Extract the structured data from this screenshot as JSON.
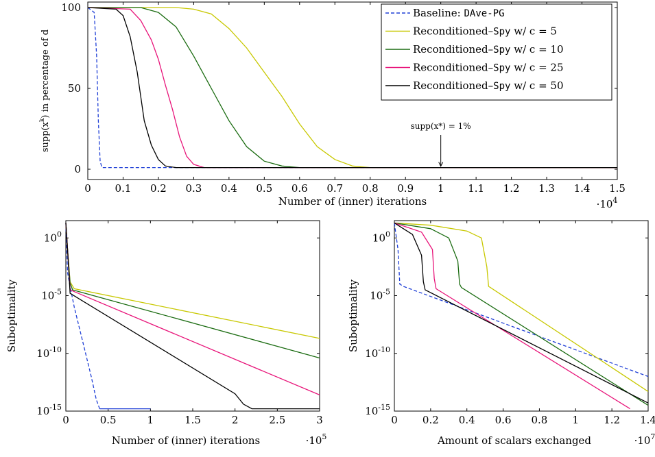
{
  "chart_data": [
    {
      "type": "line",
      "title": "",
      "xlabel": "Number of (inner) iterations",
      "ylabel": "supp(x^k) in percentage of d",
      "x_multiplier": "·10^4",
      "xlim": [
        0,
        1.5
      ],
      "ylim": [
        0,
        100
      ],
      "x_ticks": [
        "0",
        "0.1",
        "0.2",
        "0.3",
        "0.4",
        "0.5",
        "0.6",
        "0.7",
        "0.8",
        "0.9",
        "1",
        "1.1",
        "1.2",
        "1.3",
        "1.4",
        "1.5"
      ],
      "y_ticks": [
        "0",
        "50",
        "100"
      ],
      "legend_position": "top-right",
      "annotation": {
        "text": "supp(x*) = 1%",
        "x": 1.0,
        "y": 1
      },
      "series": [
        {
          "name": "Baseline: DAve-PG",
          "color": "#1f3fd6",
          "dash": true,
          "x": [
            0,
            0.018,
            0.025,
            0.03,
            0.035,
            0.04,
            1.5
          ],
          "y": [
            100,
            97,
            70,
            30,
            5,
            1,
            1
          ]
        },
        {
          "name": "Reconditioned–Spy w/ c = 5",
          "color": "#c8c800",
          "dash": false,
          "x": [
            0,
            0.25,
            0.3,
            0.35,
            0.4,
            0.45,
            0.5,
            0.55,
            0.6,
            0.65,
            0.7,
            0.75,
            0.8,
            1.5
          ],
          "y": [
            100,
            100,
            99,
            96,
            87,
            75,
            60,
            45,
            28,
            14,
            6,
            2,
            1,
            1
          ]
        },
        {
          "name": "Reconditioned–Spy w/ c = 10",
          "color": "#1a6b10",
          "dash": false,
          "x": [
            0,
            0.15,
            0.2,
            0.25,
            0.3,
            0.35,
            0.4,
            0.45,
            0.5,
            0.55,
            0.6,
            1.5
          ],
          "y": [
            100,
            100,
            97,
            88,
            70,
            50,
            30,
            14,
            5,
            2,
            1,
            1
          ]
        },
        {
          "name": "Reconditioned–Spy w/ c = 25",
          "color": "#e8157a",
          "dash": false,
          "x": [
            0,
            0.12,
            0.15,
            0.18,
            0.2,
            0.22,
            0.24,
            0.26,
            0.28,
            0.3,
            0.33,
            1.5
          ],
          "y": [
            100,
            99,
            92,
            80,
            68,
            52,
            37,
            20,
            8,
            3,
            1,
            1
          ]
        },
        {
          "name": "Reconditioned–Spy w/ c = 50",
          "color": "#000000",
          "dash": false,
          "x": [
            0,
            0.08,
            0.1,
            0.12,
            0.14,
            0.15,
            0.16,
            0.18,
            0.2,
            0.22,
            0.25,
            1.5
          ],
          "y": [
            100,
            99,
            95,
            82,
            60,
            45,
            30,
            15,
            6,
            2,
            1,
            1
          ]
        }
      ]
    },
    {
      "type": "line",
      "title": "",
      "xlabel": "Number of (inner) iterations",
      "ylabel": "Suboptimality",
      "x_multiplier": "·10^5",
      "xlim": [
        0,
        3
      ],
      "ylim_log10": [
        -15,
        1.5
      ],
      "yscale": "log",
      "x_ticks": [
        "0",
        "0.5",
        "1",
        "1.5",
        "2",
        "2.5",
        "3"
      ],
      "y_ticks": [
        "10^0",
        "10^-5",
        "10^-10",
        "10^-15"
      ],
      "series": [
        {
          "name": "Baseline: DAve-PG",
          "color": "#1f3fd6",
          "dash": true,
          "x": [
            0,
            0.02,
            0.05,
            0.1,
            0.2,
            0.3,
            0.36,
            0.4
          ],
          "log10_y": [
            1.3,
            -3,
            -4.2,
            -6,
            -9,
            -12,
            -14,
            -14.8
          ]
        },
        {
          "name": "Baseline: DAve-PG (tail)",
          "color": "#1f3fd6",
          "dash": false,
          "x": [
            0.4,
            0.45,
            1.0
          ],
          "log10_y": [
            -14.8,
            -14.8,
            -14.8
          ]
        },
        {
          "name": "Reconditioned–Spy w/ c = 5",
          "color": "#c8c800",
          "dash": false,
          "x": [
            0,
            0.02,
            0.05,
            0.1,
            3
          ],
          "log10_y": [
            1.3,
            -1,
            -3.8,
            -4.4,
            -8.7
          ]
        },
        {
          "name": "Reconditioned–Spy w/ c = 10",
          "color": "#1a6b10",
          "dash": false,
          "x": [
            0,
            0.02,
            0.05,
            0.08,
            3
          ],
          "log10_y": [
            1.3,
            -1,
            -3.9,
            -4.5,
            -10.4
          ]
        },
        {
          "name": "Reconditioned–Spy w/ c = 25",
          "color": "#e8157a",
          "dash": false,
          "x": [
            0,
            0.02,
            0.05,
            3
          ],
          "log10_y": [
            1.3,
            -1,
            -4.5,
            -13.6
          ]
        },
        {
          "name": "Reconditioned–Spy w/ c = 50",
          "color": "#000000",
          "dash": false,
          "x": [
            0,
            0.02,
            0.05,
            2.0,
            2.1,
            2.2,
            3
          ],
          "log10_y": [
            1.3,
            -1,
            -4.8,
            -13.5,
            -14.4,
            -14.8,
            -14.8
          ]
        }
      ]
    },
    {
      "type": "line",
      "title": "",
      "xlabel": "Amount of scalars exchanged",
      "ylabel": "Suboptimality",
      "x_multiplier": "·10^7",
      "xlim": [
        0,
        1.4
      ],
      "ylim_log10": [
        -15,
        1.5
      ],
      "yscale": "log",
      "x_ticks": [
        "0",
        "0.2",
        "0.4",
        "0.6",
        "0.8",
        "1",
        "1.2",
        "1.4"
      ],
      "y_ticks": [
        "10^0",
        "10^-5",
        "10^-10",
        "10^-15"
      ],
      "series": [
        {
          "name": "Baseline: DAve-PG",
          "color": "#1f3fd6",
          "dash": true,
          "x": [
            0,
            0.02,
            0.03,
            0.05,
            1.4
          ],
          "log10_y": [
            1.3,
            -1,
            -4,
            -4.2,
            -12
          ]
        },
        {
          "name": "Reconditioned–Spy w/ c = 5",
          "color": "#c8c800",
          "dash": false,
          "x": [
            0,
            0.2,
            0.4,
            0.48,
            0.51,
            0.52,
            0.53,
            1.4
          ],
          "log10_y": [
            1.3,
            1.1,
            0.6,
            0,
            -2.5,
            -4.2,
            -4.3,
            -13.3
          ]
        },
        {
          "name": "Reconditioned–Spy w/ c = 10",
          "color": "#1a6b10",
          "dash": false,
          "x": [
            0,
            0.2,
            0.3,
            0.35,
            0.36,
            0.37,
            1.4
          ],
          "log10_y": [
            1.3,
            0.8,
            0,
            -2,
            -4,
            -4.3,
            -14.5
          ]
        },
        {
          "name": "Reconditioned–Spy w/ c = 25",
          "color": "#e8157a",
          "dash": false,
          "x": [
            0,
            0.15,
            0.21,
            0.22,
            0.23,
            1.3
          ],
          "log10_y": [
            1.3,
            0.5,
            -1,
            -3.5,
            -4.4,
            -14.8
          ]
        },
        {
          "name": "Reconditioned–Spy w/ c = 50",
          "color": "#000000",
          "dash": false,
          "x": [
            0,
            0.1,
            0.15,
            0.16,
            0.17,
            1.4
          ],
          "log10_y": [
            1.3,
            0.3,
            -1.5,
            -3.8,
            -4.5,
            -14.3
          ]
        }
      ]
    }
  ],
  "legend": {
    "entries": [
      {
        "prefix": "Baseline: ",
        "code": "DAve-PG",
        "suffix": "",
        "color": "#1f3fd6",
        "dash": true
      },
      {
        "prefix": "Reconditioned–",
        "code": "Spy",
        "suffix": " w/ c = 5",
        "color": "#c8c800",
        "dash": false
      },
      {
        "prefix": "Reconditioned–",
        "code": "Spy",
        "suffix": " w/ c = 10",
        "color": "#1a6b10",
        "dash": false
      },
      {
        "prefix": "Reconditioned–",
        "code": "Spy",
        "suffix": " w/ c = 25",
        "color": "#e8157a",
        "dash": false
      },
      {
        "prefix": "Reconditioned–",
        "code": "Spy",
        "suffix": " w/ c = 50",
        "color": "#000000",
        "dash": false
      }
    ]
  }
}
